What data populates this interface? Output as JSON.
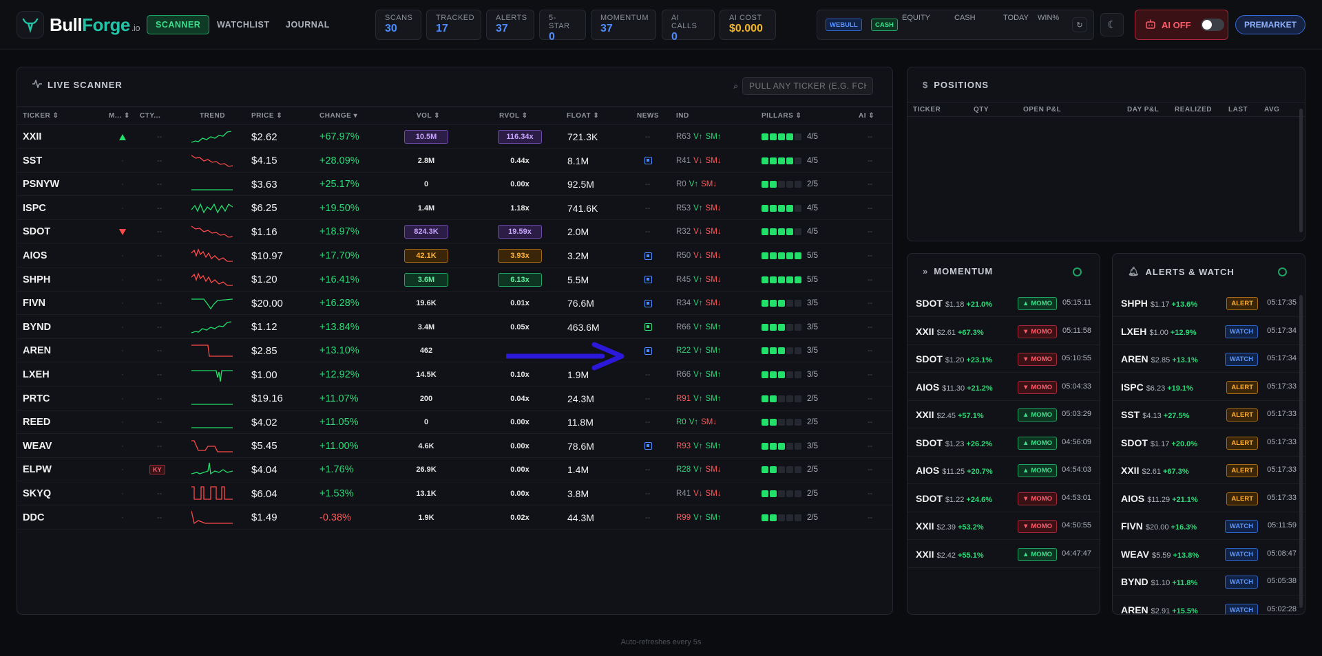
{
  "app": {
    "name_a": "Bull",
    "name_b": "Forge",
    "name_c": ".io"
  },
  "nav": {
    "tabs": [
      "SCANNER",
      "WATCHLIST",
      "JOURNAL"
    ],
    "active": 0
  },
  "stats": [
    {
      "label": "SCANS",
      "value": "30"
    },
    {
      "label": "TRACKED",
      "value": "17"
    },
    {
      "label": "ALERTS",
      "value": "37"
    },
    {
      "label": "5-STAR",
      "value": "0"
    },
    {
      "label": "MOMENTUM",
      "value": "37"
    },
    {
      "label": "AI CALLS",
      "value": "0"
    },
    {
      "label": "AI COST",
      "value": "$0.000"
    }
  ],
  "account": {
    "broker": "WEBULL",
    "mode": "CASH",
    "cols": [
      "EQUITY",
      "CASH",
      "TODAY",
      "WIN%"
    ]
  },
  "ai_toggle": {
    "label": "AI OFF",
    "on": false
  },
  "session": "PREMARKET",
  "scanner": {
    "title": "LIVE SCANNER",
    "search_placeholder": "PULL ANY TICKER (E.G. FCHL",
    "headers": [
      "TICKER",
      "M...",
      "CTY...",
      "TREND",
      "PRICE",
      "CHANGE",
      "VOL",
      "RVOL",
      "FLOAT",
      "NEWS",
      "IND",
      "PILLARS",
      "AI"
    ],
    "rows": [
      {
        "ticker": "XXII",
        "mark": "up",
        "cty": "--",
        "trend": "up",
        "price": "$2.62",
        "change": "+67.97%",
        "dir": "up",
        "vol": "10.5M",
        "volStyle": "purple",
        "rvol": "116.34x",
        "rvolStyle": "purple",
        "float": "721.3K",
        "news": "--",
        "ind_r": "R63",
        "ind_v": "V↑",
        "ind_sm": "SM↑",
        "ind_vdir": "up",
        "ind_smdir": "up",
        "pillars": 4,
        "pillar_text": "4/5",
        "ai": "--"
      },
      {
        "ticker": "SST",
        "mark": "",
        "cty": "--",
        "trend": "down",
        "price": "$4.15",
        "change": "+28.09%",
        "dir": "up",
        "vol": "2.8M",
        "volStyle": "",
        "rvol": "0.44x",
        "rvolStyle": "",
        "float": "8.1M",
        "news": "icon",
        "ind_r": "R41",
        "ind_v": "V↓",
        "ind_sm": "SM↓",
        "ind_vdir": "dn",
        "ind_smdir": "dn",
        "pillars": 4,
        "pillar_text": "4/5",
        "ai": "--"
      },
      {
        "ticker": "PSNYW",
        "mark": "",
        "cty": "--",
        "trend": "flat",
        "price": "$3.63",
        "change": "+25.17%",
        "dir": "up",
        "vol": "0",
        "volStyle": "",
        "rvol": "0.00x",
        "rvolStyle": "",
        "float": "92.5M",
        "news": "--",
        "ind_r": "R0",
        "ind_v": "V↑",
        "ind_sm": "SM↓",
        "ind_vdir": "up",
        "ind_smdir": "dn",
        "pillars": 2,
        "pillar_text": "2/5",
        "ai": "--"
      },
      {
        "ticker": "ISPC",
        "mark": "",
        "cty": "--",
        "trend": "wave",
        "price": "$6.25",
        "change": "+19.50%",
        "dir": "up",
        "vol": "1.4M",
        "volStyle": "",
        "rvol": "1.18x",
        "rvolStyle": "",
        "float": "741.6K",
        "news": "--",
        "ind_r": "R53",
        "ind_v": "V↑",
        "ind_sm": "SM↓",
        "ind_vdir": "up",
        "ind_smdir": "dn",
        "pillars": 4,
        "pillar_text": "4/5",
        "ai": "--"
      },
      {
        "ticker": "SDOT",
        "mark": "dn",
        "cty": "--",
        "trend": "down",
        "price": "$1.16",
        "change": "+18.97%",
        "dir": "up",
        "vol": "824.3K",
        "volStyle": "purple",
        "rvol": "19.59x",
        "rvolStyle": "purple",
        "float": "2.0M",
        "news": "--",
        "ind_r": "R32",
        "ind_v": "V↓",
        "ind_sm": "SM↓",
        "ind_vdir": "dn",
        "ind_smdir": "dn",
        "pillars": 4,
        "pillar_text": "4/5",
        "ai": "--"
      },
      {
        "ticker": "AIOS",
        "mark": "",
        "cty": "--",
        "trend": "downwave",
        "price": "$10.97",
        "change": "+17.70%",
        "dir": "up",
        "vol": "42.1K",
        "volStyle": "orange",
        "rvol": "3.93x",
        "rvolStyle": "orange",
        "float": "3.2M",
        "news": "icon",
        "ind_r": "R50",
        "ind_v": "V↓",
        "ind_sm": "SM↓",
        "ind_vdir": "dn",
        "ind_smdir": "dn",
        "pillars": 5,
        "pillar_text": "5/5",
        "ai": "--"
      },
      {
        "ticker": "SHPH",
        "mark": "",
        "cty": "--",
        "trend": "downwave",
        "price": "$1.20",
        "change": "+16.41%",
        "dir": "up",
        "vol": "3.6M",
        "volStyle": "green",
        "rvol": "6.13x",
        "rvolStyle": "green",
        "float": "5.5M",
        "news": "icon",
        "ind_r": "R45",
        "ind_v": "V↑",
        "ind_sm": "SM↓",
        "ind_vdir": "up",
        "ind_smdir": "dn",
        "pillars": 5,
        "pillar_text": "5/5",
        "ai": "--"
      },
      {
        "ticker": "FIVN",
        "mark": "",
        "cty": "--",
        "trend": "dip",
        "price": "$20.00",
        "change": "+16.28%",
        "dir": "up",
        "vol": "19.6K",
        "volStyle": "",
        "rvol": "0.01x",
        "rvolStyle": "",
        "float": "76.6M",
        "news": "icon",
        "ind_r": "R34",
        "ind_v": "V↑",
        "ind_sm": "SM↓",
        "ind_vdir": "up",
        "ind_smdir": "dn",
        "pillars": 3,
        "pillar_text": "3/5",
        "ai": "--"
      },
      {
        "ticker": "BYND",
        "mark": "",
        "cty": "--",
        "trend": "up",
        "price": "$1.12",
        "change": "+13.84%",
        "dir": "up",
        "vol": "3.4M",
        "volStyle": "",
        "rvol": "0.05x",
        "rvolStyle": "",
        "float": "463.6M",
        "news": "iconG",
        "ind_r": "R66",
        "ind_v": "V↑",
        "ind_sm": "SM↑",
        "ind_vdir": "up",
        "ind_smdir": "up",
        "pillars": 3,
        "pillar_text": "3/5",
        "ai": "--"
      },
      {
        "ticker": "AREN",
        "mark": "",
        "cty": "--",
        "trend": "step",
        "price": "$2.85",
        "change": "+13.10%",
        "dir": "up",
        "vol": "462",
        "volStyle": "",
        "rvol": "",
        "rvolStyle": "",
        "float": "",
        "news": "icon",
        "ind_r": "R22",
        "ind_v": "V↑",
        "ind_sm": "SM↑",
        "ind_vdir": "up",
        "ind_smdir": "up",
        "pillars": 3,
        "pillar_text": "3/5",
        "ai": "--",
        "rgreen": true
      },
      {
        "ticker": "LXEH",
        "mark": "",
        "cty": "--",
        "trend": "spike",
        "price": "$1.00",
        "change": "+12.92%",
        "dir": "up",
        "vol": "14.5K",
        "volStyle": "",
        "rvol": "0.10x",
        "rvolStyle": "",
        "float": "1.9M",
        "news": "--",
        "ind_r": "R66",
        "ind_v": "V↑",
        "ind_sm": "SM↑",
        "ind_vdir": "up",
        "ind_smdir": "up",
        "pillars": 3,
        "pillar_text": "3/5",
        "ai": "--"
      },
      {
        "ticker": "PRTC",
        "mark": "",
        "cty": "--",
        "trend": "flat",
        "price": "$19.16",
        "change": "+11.07%",
        "dir": "up",
        "vol": "200",
        "volStyle": "",
        "rvol": "0.04x",
        "rvolStyle": "",
        "float": "24.3M",
        "news": "--",
        "ind_r": "R91",
        "ind_v": "V↑",
        "ind_sm": "SM↑",
        "ind_vdir": "up",
        "ind_smdir": "up",
        "pillars": 2,
        "pillar_text": "2/5",
        "ai": "--",
        "rred": true
      },
      {
        "ticker": "REED",
        "mark": "",
        "cty": "--",
        "trend": "flat",
        "price": "$4.02",
        "change": "+11.05%",
        "dir": "up",
        "vol": "0",
        "volStyle": "",
        "rvol": "0.00x",
        "rvolStyle": "",
        "float": "11.8M",
        "news": "--",
        "ind_r": "R0",
        "ind_v": "V↑",
        "ind_sm": "SM↓",
        "ind_vdir": "up",
        "ind_smdir": "dn",
        "pillars": 2,
        "pillar_text": "2/5",
        "ai": "--",
        "rgreen": true
      },
      {
        "ticker": "WEAV",
        "mark": "",
        "cty": "--",
        "trend": "stepdown",
        "price": "$5.45",
        "change": "+11.00%",
        "dir": "up",
        "vol": "4.6K",
        "volStyle": "",
        "rvol": "0.00x",
        "rvolStyle": "",
        "float": "78.6M",
        "news": "icon",
        "ind_r": "R93",
        "ind_v": "V↑",
        "ind_sm": "SM↑",
        "ind_vdir": "up",
        "ind_smdir": "up",
        "pillars": 3,
        "pillar_text": "3/5",
        "ai": "--",
        "rred": true
      },
      {
        "ticker": "ELPW",
        "mark": "",
        "cty": "KY",
        "trend": "spikeg",
        "price": "$4.04",
        "change": "+1.76%",
        "dir": "up",
        "vol": "26.9K",
        "volStyle": "",
        "rvol": "0.00x",
        "rvolStyle": "",
        "float": "1.4M",
        "news": "--",
        "ind_r": "R28",
        "ind_v": "V↑",
        "ind_sm": "SM↓",
        "ind_vdir": "up",
        "ind_smdir": "dn",
        "pillars": 2,
        "pillar_text": "2/5",
        "ai": "--",
        "rgreen": true
      },
      {
        "ticker": "SKYQ",
        "mark": "",
        "cty": "--",
        "trend": "square",
        "price": "$6.04",
        "change": "+1.53%",
        "dir": "up",
        "vol": "13.1K",
        "volStyle": "",
        "rvol": "0.00x",
        "rvolStyle": "",
        "float": "3.8M",
        "news": "--",
        "ind_r": "R41",
        "ind_v": "V↓",
        "ind_sm": "SM↓",
        "ind_vdir": "dn",
        "ind_smdir": "dn",
        "pillars": 2,
        "pillar_text": "2/5",
        "ai": "--"
      },
      {
        "ticker": "DDC",
        "mark": "",
        "cty": "--",
        "trend": "drop",
        "price": "$1.49",
        "change": "-0.38%",
        "dir": "dn",
        "vol": "1.9K",
        "volStyle": "",
        "rvol": "0.02x",
        "rvolStyle": "",
        "float": "44.3M",
        "news": "--",
        "ind_r": "R99",
        "ind_v": "V↑",
        "ind_sm": "SM↑",
        "ind_vdir": "up",
        "ind_smdir": "up",
        "pillars": 2,
        "pillar_text": "2/5",
        "ai": "--",
        "rred": true
      }
    ]
  },
  "positions": {
    "title": "POSITIONS",
    "headers": [
      "TICKER",
      "QTY",
      "OPEN P&L",
      "DAY P&L",
      "REALIZED",
      "LAST",
      "AVG"
    ]
  },
  "momentum": {
    "title": "MOMENTUM",
    "items": [
      {
        "t": "SDOT",
        "p": "$1.18",
        "c": "+21.0%",
        "dir": "up",
        "time": "05:15:11"
      },
      {
        "t": "XXII",
        "p": "$2.61",
        "c": "+67.3%",
        "dir": "dn",
        "time": "05:11:58"
      },
      {
        "t": "SDOT",
        "p": "$1.20",
        "c": "+23.1%",
        "dir": "dn",
        "time": "05:10:55"
      },
      {
        "t": "AIOS",
        "p": "$11.30",
        "c": "+21.2%",
        "dir": "dn",
        "time": "05:04:33"
      },
      {
        "t": "XXII",
        "p": "$2.45",
        "c": "+57.1%",
        "dir": "up",
        "time": "05:03:29"
      },
      {
        "t": "SDOT",
        "p": "$1.23",
        "c": "+26.2%",
        "dir": "up",
        "time": "04:56:09"
      },
      {
        "t": "AIOS",
        "p": "$11.25",
        "c": "+20.7%",
        "dir": "up",
        "time": "04:54:03"
      },
      {
        "t": "SDOT",
        "p": "$1.22",
        "c": "+24.6%",
        "dir": "dn",
        "time": "04:53:01"
      },
      {
        "t": "XXII",
        "p": "$2.39",
        "c": "+53.2%",
        "dir": "dn",
        "time": "04:50:55"
      },
      {
        "t": "XXII",
        "p": "$2.42",
        "c": "+55.1%",
        "dir": "up",
        "time": "04:47:47"
      }
    ],
    "badge": "MOMO"
  },
  "alerts": {
    "title": "ALERTS & WATCH",
    "items": [
      {
        "t": "SHPH",
        "p": "$1.17",
        "c": "+13.6%",
        "kind": "ALERT",
        "time": "05:17:35"
      },
      {
        "t": "LXEH",
        "p": "$1.00",
        "c": "+12.9%",
        "kind": "WATCH",
        "time": "05:17:34"
      },
      {
        "t": "AREN",
        "p": "$2.85",
        "c": "+13.1%",
        "kind": "WATCH",
        "time": "05:17:34"
      },
      {
        "t": "ISPC",
        "p": "$6.23",
        "c": "+19.1%",
        "kind": "ALERT",
        "time": "05:17:33"
      },
      {
        "t": "SST",
        "p": "$4.13",
        "c": "+27.5%",
        "kind": "ALERT",
        "time": "05:17:33"
      },
      {
        "t": "SDOT",
        "p": "$1.17",
        "c": "+20.0%",
        "kind": "ALERT",
        "time": "05:17:33"
      },
      {
        "t": "XXII",
        "p": "$2.61",
        "c": "+67.3%",
        "kind": "ALERT",
        "time": "05:17:33"
      },
      {
        "t": "AIOS",
        "p": "$11.29",
        "c": "+21.1%",
        "kind": "ALERT",
        "time": "05:17:33"
      },
      {
        "t": "FIVN",
        "p": "$20.00",
        "c": "+16.3%",
        "kind": "WATCH",
        "time": "05:11:59"
      },
      {
        "t": "WEAV",
        "p": "$5.59",
        "c": "+13.8%",
        "kind": "WATCH",
        "time": "05:08:47"
      },
      {
        "t": "BYND",
        "p": "$1.10",
        "c": "+11.8%",
        "kind": "WATCH",
        "time": "05:05:38"
      },
      {
        "t": "AREN",
        "p": "$2.91",
        "c": "+15.5%",
        "kind": "WATCH",
        "time": "05:02:28"
      }
    ]
  },
  "footer": "Auto-refreshes every 5s",
  "colors": {
    "accent": "#22c3a6",
    "up": "#2fd878",
    "down": "#ff5a5a",
    "blue": "#4e8dff",
    "gold": "#f5b72a"
  }
}
